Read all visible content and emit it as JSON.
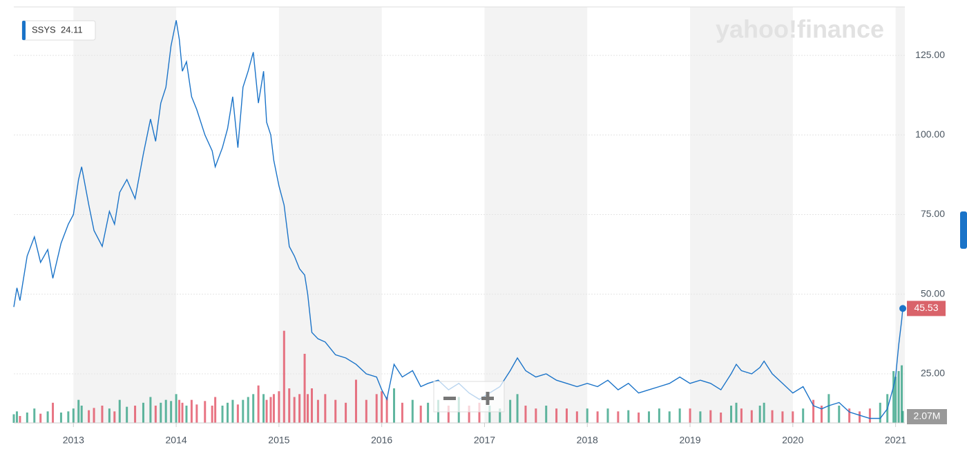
{
  "chart_data": {
    "type": "line",
    "watermark": "yahoo!finance",
    "legend_value": "24.11",
    "xlim": [
      2012.42,
      2021.09
    ],
    "xticks": [
      2013,
      2014,
      2015,
      2016,
      2017,
      2018,
      2019,
      2020,
      2021
    ],
    "ylim": [
      9.6,
      140.2
    ],
    "yticks": [
      {
        "value": 25,
        "label": "25.00"
      },
      {
        "value": 50,
        "label": "50.00"
      },
      {
        "value": 75,
        "label": "75.00"
      },
      {
        "value": 100,
        "label": "100.00"
      },
      {
        "value": 125,
        "label": "125.00"
      }
    ],
    "grid": true,
    "x": [
      2012.42,
      2012.45,
      2012.48,
      2012.55,
      2012.62,
      2012.68,
      2012.75,
      2012.8,
      2012.88,
      2012.95,
      2013.0,
      2013.05,
      2013.08,
      2013.15,
      2013.2,
      2013.28,
      2013.35,
      2013.4,
      2013.45,
      2013.52,
      2013.6,
      2013.68,
      2013.75,
      2013.8,
      2013.85,
      2013.9,
      2013.95,
      2014.0,
      2014.03,
      2014.06,
      2014.1,
      2014.15,
      2014.2,
      2014.28,
      2014.35,
      2014.38,
      2014.45,
      2014.5,
      2014.55,
      2014.6,
      2014.65,
      2014.7,
      2014.75,
      2014.8,
      2014.85,
      2014.88,
      2014.92,
      2014.95,
      2015.0,
      2015.05,
      2015.1,
      2015.15,
      2015.2,
      2015.25,
      2015.28,
      2015.32,
      2015.38,
      2015.45,
      2015.55,
      2015.65,
      2015.75,
      2015.85,
      2015.95,
      2016.0,
      2016.05,
      2016.12,
      2016.2,
      2016.3,
      2016.38,
      2016.45,
      2016.55,
      2016.65,
      2016.75,
      2016.85,
      2016.95,
      2017.05,
      2017.15,
      2017.25,
      2017.32,
      2017.4,
      2017.5,
      2017.6,
      2017.7,
      2017.8,
      2017.9,
      2018.0,
      2018.1,
      2018.2,
      2018.3,
      2018.4,
      2018.5,
      2018.6,
      2018.7,
      2018.8,
      2018.9,
      2019.0,
      2019.1,
      2019.2,
      2019.3,
      2019.4,
      2019.45,
      2019.5,
      2019.6,
      2019.68,
      2019.72,
      2019.8,
      2019.9,
      2020.0,
      2020.1,
      2020.2,
      2020.28,
      2020.35,
      2020.45,
      2020.55,
      2020.65,
      2020.75,
      2020.85,
      2020.92,
      2020.98,
      2021.0,
      2021.03,
      2021.06,
      2021.07
    ],
    "series": [
      {
        "name": "SSYS",
        "color": "#1a73c8",
        "values": [
          46,
          52,
          48,
          62,
          68,
          60,
          64,
          55,
          66,
          72,
          75,
          86,
          90,
          78,
          70,
          65,
          76,
          72,
          82,
          86,
          80,
          94,
          105,
          98,
          110,
          115,
          128,
          136,
          130,
          120,
          123,
          112,
          108,
          100,
          95,
          90,
          96,
          102,
          112,
          96,
          115,
          120,
          126,
          110,
          120,
          104,
          100,
          92,
          84,
          78,
          65,
          62,
          58,
          56,
          50,
          38,
          36,
          35,
          31,
          30,
          28,
          25,
          24,
          20,
          17,
          28,
          24,
          26,
          21,
          22,
          23,
          20,
          22,
          19,
          17,
          19,
          21,
          26,
          30,
          26,
          24,
          25,
          23,
          22,
          21,
          22,
          21,
          23,
          20,
          22,
          19,
          20,
          21,
          22,
          24,
          22,
          23,
          22,
          20,
          25,
          28,
          26,
          25,
          27,
          29,
          25,
          22,
          19,
          21,
          15,
          14,
          15,
          16,
          13,
          12,
          11,
          11,
          14,
          21,
          24,
          34,
          42,
          45.53
        ]
      }
    ],
    "volume": {
      "vlim": [
        0,
        18
      ],
      "up_color": "#2a9d7f",
      "down_color": "#e0455a",
      "last_label": "2.07M",
      "values": [
        1.5,
        2,
        1.2,
        1.8,
        2.5,
        1.6,
        2,
        3.5,
        1.8,
        2,
        2.5,
        4,
        3,
        2.2,
        2.6,
        3,
        2.5,
        2,
        4,
        2.8,
        3,
        3.5,
        4.5,
        3,
        3.5,
        4,
        3.8,
        5,
        4,
        3.5,
        3,
        4,
        3.2,
        3.8,
        3,
        4.5,
        3,
        3.5,
        4,
        3.2,
        4,
        4.5,
        5,
        6.5,
        5,
        4,
        4.5,
        5,
        5.5,
        16,
        6,
        4.5,
        5,
        12,
        5,
        6,
        4,
        5,
        4,
        3.5,
        7.5,
        4,
        5,
        5.5,
        4.5,
        6,
        3.5,
        4,
        3,
        3.5,
        4,
        3,
        4.5,
        3,
        3.5,
        3,
        2.5,
        4,
        5,
        3,
        2.5,
        3,
        2.5,
        2.5,
        2,
        2.5,
        2,
        2.5,
        2,
        2.2,
        1.8,
        2,
        2.5,
        2,
        2.5,
        2.5,
        2,
        2.2,
        1.8,
        3,
        3.5,
        2.5,
        2.2,
        3,
        3.5,
        2.2,
        2,
        2,
        2.5,
        4,
        3,
        5,
        3,
        2.5,
        2,
        2.5,
        3.5,
        5,
        9,
        8,
        9,
        10,
        2.07
      ]
    }
  }
}
